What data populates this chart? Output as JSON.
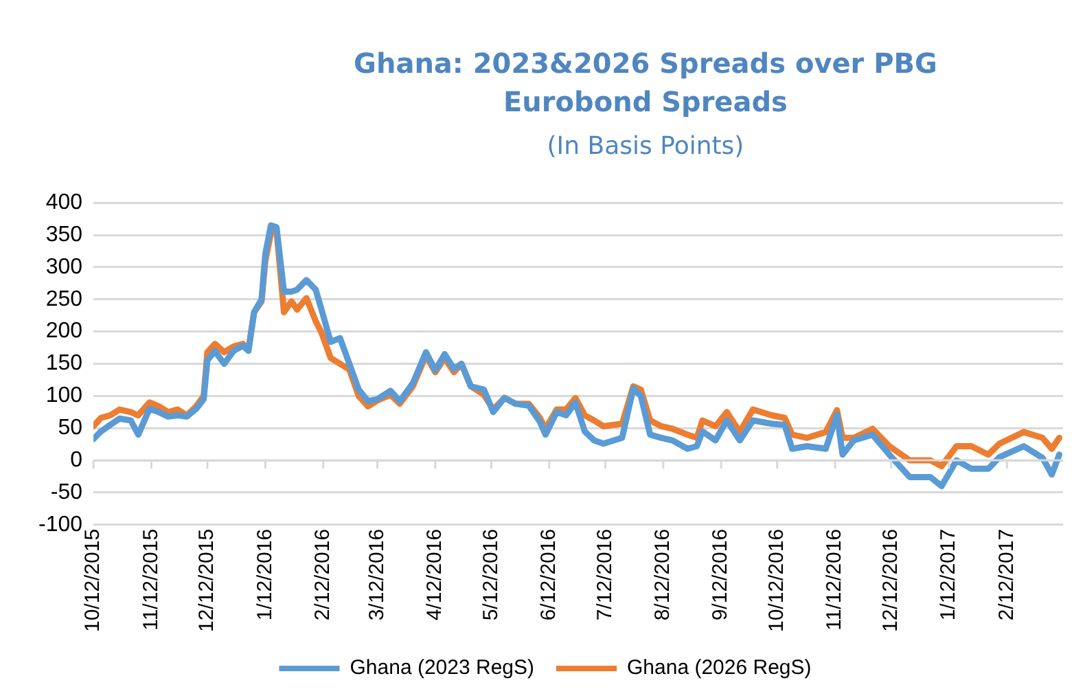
{
  "chart_data": {
    "type": "line",
    "title": "Ghana: 2023&2026 Spreads over PBG Eurobond Spreads",
    "subtitle": "(In Basis Points)",
    "x": [
      "2015-10-12",
      "2015-10-16",
      "2015-10-21",
      "2015-10-26",
      "2015-11-01",
      "2015-11-05",
      "2015-11-11",
      "2015-11-16",
      "2015-11-21",
      "2015-11-26",
      "2015-12-01",
      "2015-12-06",
      "2015-12-10",
      "2015-12-12",
      "2015-12-16",
      "2015-12-21",
      "2015-12-26",
      "2015-12-31",
      "2016-01-03",
      "2016-01-06",
      "2016-01-10",
      "2016-01-12",
      "2016-01-15",
      "2016-01-18",
      "2016-01-22",
      "2016-01-26",
      "2016-01-29",
      "2016-02-03",
      "2016-02-08",
      "2016-02-11",
      "2016-02-16",
      "2016-02-21",
      "2016-02-26",
      "2016-03-02",
      "2016-03-07",
      "2016-03-12",
      "2016-03-19",
      "2016-03-24",
      "2016-03-31",
      "2016-04-07",
      "2016-04-12",
      "2016-04-17",
      "2016-04-22",
      "2016-04-26",
      "2016-05-01",
      "2016-05-08",
      "2016-05-13",
      "2016-05-19",
      "2016-05-25",
      "2016-06-01",
      "2016-06-07",
      "2016-06-10",
      "2016-06-16",
      "2016-06-21",
      "2016-06-26",
      "2016-07-01",
      "2016-07-06",
      "2016-07-11",
      "2016-07-21",
      "2016-07-27",
      "2016-07-31",
      "2016-08-05",
      "2016-08-11",
      "2016-08-17",
      "2016-08-25",
      "2016-08-30",
      "2016-09-02",
      "2016-09-09",
      "2016-09-15",
      "2016-09-22",
      "2016-09-29",
      "2016-10-09",
      "2016-10-16",
      "2016-10-20",
      "2016-10-28",
      "2016-11-07",
      "2016-11-13",
      "2016-11-16",
      "2016-11-22",
      "2016-12-02",
      "2016-12-11",
      "2016-12-22",
      "2017-01-02",
      "2017-01-08",
      "2017-01-16",
      "2017-01-24",
      "2017-02-02",
      "2017-02-08",
      "2017-02-21",
      "2017-03-03",
      "2017-03-08",
      "2017-03-12"
    ],
    "series": [
      {
        "name": "Ghana (2023 RegS)",
        "color": "#5b9bd5",
        "values": [
          33,
          45,
          55,
          65,
          62,
          40,
          80,
          75,
          68,
          70,
          68,
          80,
          95,
          155,
          170,
          150,
          170,
          178,
          170,
          230,
          250,
          320,
          365,
          362,
          262,
          262,
          265,
          280,
          265,
          235,
          184,
          190,
          150,
          110,
          92,
          95,
          108,
          92,
          120,
          168,
          140,
          165,
          142,
          150,
          115,
          110,
          75,
          97,
          88,
          85,
          60,
          40,
          75,
          70,
          90,
          45,
          31,
          26,
          35,
          112,
          100,
          40,
          35,
          31,
          18,
          22,
          45,
          31,
          62,
          31,
          62,
          57,
          55,
          18,
          22,
          18,
          71,
          9,
          31,
          40,
          9,
          -26,
          -26,
          -40,
          0,
          -13,
          -13,
          5,
          22,
          4,
          -22,
          9
        ]
      },
      {
        "name": "Ghana (2026 RegS)",
        "color": "#ed7d31",
        "values": [
          53,
          66,
          70,
          79,
          75,
          70,
          90,
          84,
          75,
          79,
          70,
          84,
          100,
          168,
          181,
          168,
          177,
          181,
          172,
          230,
          247,
          309,
          353,
          358,
          230,
          247,
          234,
          252,
          216,
          199,
          159,
          150,
          141,
          100,
          84,
          93,
          102,
          88,
          115,
          163,
          137,
          159,
          137,
          150,
          115,
          102,
          79,
          97,
          88,
          88,
          66,
          49,
          79,
          79,
          97,
          70,
          62,
          53,
          57,
          115,
          110,
          62,
          53,
          49,
          40,
          35,
          62,
          53,
          75,
          44,
          79,
          70,
          66,
          40,
          35,
          44,
          78,
          35,
          35,
          49,
          22,
          0,
          0,
          -9,
          22,
          22,
          9,
          26,
          44,
          35,
          18,
          35
        ]
      }
    ],
    "xlim": [
      "2015-10-12",
      "2017-03-14"
    ],
    "xticks": [
      {
        "value": "2015-10-12",
        "label": "10/12/2015"
      },
      {
        "value": "2015-11-12",
        "label": "11/12/2015"
      },
      {
        "value": "2015-12-12",
        "label": "12/12/2015"
      },
      {
        "value": "2016-01-12",
        "label": "1/12/2016"
      },
      {
        "value": "2016-02-12",
        "label": "2/12/2016"
      },
      {
        "value": "2016-03-12",
        "label": "3/12/2016"
      },
      {
        "value": "2016-04-12",
        "label": "4/12/2016"
      },
      {
        "value": "2016-05-12",
        "label": "5/12/2016"
      },
      {
        "value": "2016-06-12",
        "label": "6/12/2016"
      },
      {
        "value": "2016-07-12",
        "label": "7/12/2016"
      },
      {
        "value": "2016-08-12",
        "label": "8/12/2016"
      },
      {
        "value": "2016-09-12",
        "label": "9/12/2016"
      },
      {
        "value": "2016-10-12",
        "label": "10/12/2016"
      },
      {
        "value": "2016-11-12",
        "label": "11/12/2016"
      },
      {
        "value": "2016-12-12",
        "label": "12/12/2016"
      },
      {
        "value": "2017-01-12",
        "label": "1/12/2017"
      },
      {
        "value": "2017-02-12",
        "label": "2/12/2017"
      }
    ],
    "ylim": [
      -100,
      400
    ],
    "yticks": [
      -100,
      -50,
      0,
      50,
      100,
      150,
      200,
      250,
      300,
      350,
      400
    ],
    "grid": "y",
    "legend": "bottom",
    "marker": "none",
    "line_style": "solid"
  }
}
